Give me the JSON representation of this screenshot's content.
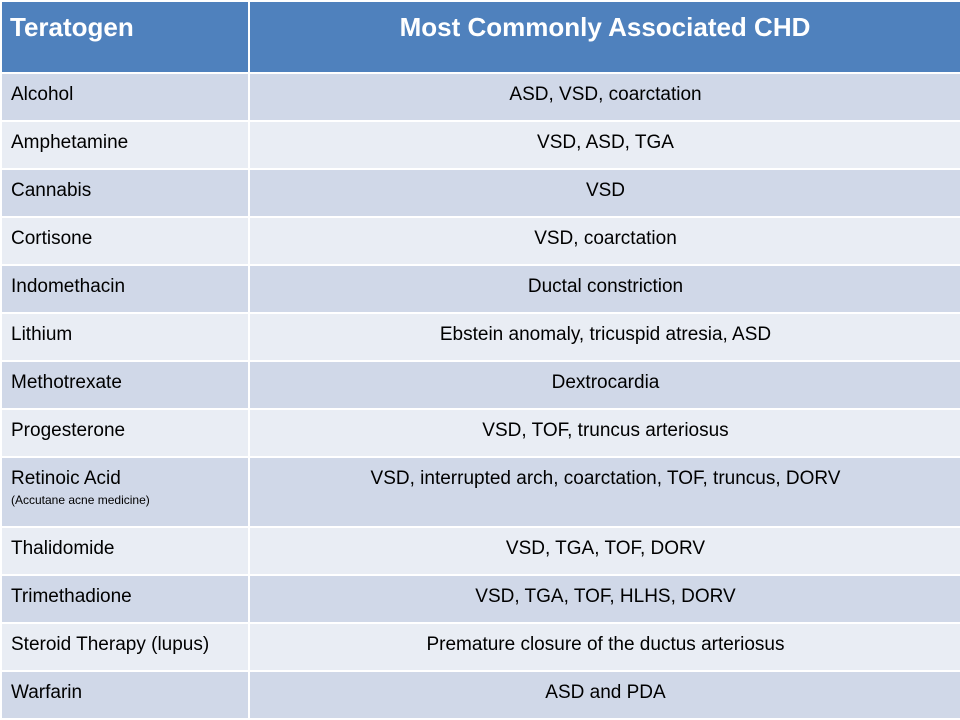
{
  "table": {
    "headers": [
      "Teratogen",
      "Most Commonly Associated CHD"
    ],
    "rows": [
      {
        "teratogen": "Alcohol",
        "chd": "ASD, VSD, coarctation"
      },
      {
        "teratogen": "Amphetamine",
        "chd": "VSD, ASD, TGA"
      },
      {
        "teratogen": "Cannabis",
        "chd": "VSD"
      },
      {
        "teratogen": "Cortisone",
        "chd": "VSD, coarctation"
      },
      {
        "teratogen": "Indomethacin",
        "chd": "Ductal constriction"
      },
      {
        "teratogen": "Lithium",
        "chd": "Ebstein anomaly, tricuspid atresia, ASD"
      },
      {
        "teratogen": "Methotrexate",
        "chd": "Dextrocardia"
      },
      {
        "teratogen": "Progesterone",
        "chd": "VSD, TOF, truncus arteriosus"
      },
      {
        "teratogen": "Retinoic Acid",
        "note": "(Accutane acne medicine)",
        "chd": "VSD, interrupted arch, coarctation, TOF, truncus, DORV"
      },
      {
        "teratogen": "Thalidomide",
        "chd": "VSD, TGA, TOF, DORV"
      },
      {
        "teratogen": "Trimethadione",
        "chd": "VSD, TGA, TOF, HLHS, DORV"
      },
      {
        "teratogen": "Steroid Therapy (lupus)",
        "chd": "Premature closure of the ductus arteriosus"
      },
      {
        "teratogen": "Warfarin",
        "chd": "ASD and PDA"
      }
    ]
  },
  "colors": {
    "header": "#4f81bd",
    "row_dark": "#d0d8e8",
    "row_light": "#e9edf4"
  }
}
